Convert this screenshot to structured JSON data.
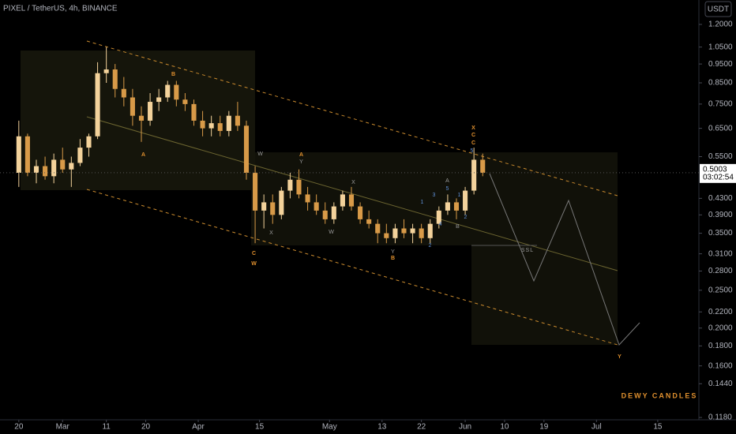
{
  "chart_data": {
    "type": "candlestick",
    "title": "PIXEL / TetherUS, 4h, BINANCE",
    "currency": "USDT",
    "last_price": 0.5003,
    "countdown": "03:02:54",
    "x": [
      0,
      2,
      4,
      6,
      8,
      10,
      12,
      14,
      16,
      18,
      20,
      22,
      24,
      26,
      28,
      30,
      32,
      34,
      36,
      38,
      40,
      42,
      44,
      46,
      48,
      50,
      52,
      54,
      56,
      58,
      60,
      62,
      64,
      66,
      68,
      70,
      72,
      74,
      76,
      78,
      80,
      82,
      84,
      86,
      88,
      90,
      92,
      94,
      96,
      98,
      100,
      102,
      104,
      106
    ],
    "open": [
      0.5,
      0.62,
      0.5,
      0.52,
      0.49,
      0.54,
      0.51,
      0.53,
      0.58,
      0.62,
      0.9,
      0.92,
      0.82,
      0.78,
      0.7,
      0.68,
      0.76,
      0.78,
      0.84,
      0.77,
      0.75,
      0.68,
      0.65,
      0.67,
      0.64,
      0.7,
      0.66,
      0.5,
      0.4,
      0.42,
      0.39,
      0.45,
      0.48,
      0.44,
      0.42,
      0.4,
      0.38,
      0.41,
      0.44,
      0.41,
      0.38,
      0.37,
      0.35,
      0.34,
      0.36,
      0.35,
      0.36,
      0.34,
      0.37,
      0.4,
      0.42,
      0.4,
      0.45,
      0.54
    ],
    "high": [
      0.68,
      0.63,
      0.54,
      0.55,
      0.56,
      0.58,
      0.55,
      0.61,
      0.63,
      0.96,
      1.05,
      0.95,
      0.88,
      0.82,
      0.74,
      0.8,
      0.82,
      0.86,
      0.86,
      0.8,
      0.77,
      0.72,
      0.7,
      0.7,
      0.72,
      0.76,
      0.68,
      0.52,
      0.44,
      0.44,
      0.46,
      0.5,
      0.51,
      0.46,
      0.44,
      0.42,
      0.42,
      0.45,
      0.46,
      0.42,
      0.4,
      0.38,
      0.37,
      0.37,
      0.38,
      0.37,
      0.37,
      0.38,
      0.41,
      0.44,
      0.43,
      0.46,
      0.58,
      0.56
    ],
    "low": [
      0.46,
      0.49,
      0.47,
      0.48,
      0.47,
      0.5,
      0.46,
      0.52,
      0.55,
      0.61,
      0.85,
      0.78,
      0.74,
      0.66,
      0.6,
      0.66,
      0.72,
      0.76,
      0.74,
      0.72,
      0.66,
      0.62,
      0.62,
      0.62,
      0.62,
      0.64,
      0.48,
      0.33,
      0.36,
      0.37,
      0.38,
      0.43,
      0.43,
      0.4,
      0.39,
      0.37,
      0.37,
      0.4,
      0.4,
      0.37,
      0.36,
      0.33,
      0.33,
      0.33,
      0.34,
      0.33,
      0.33,
      0.33,
      0.36,
      0.39,
      0.38,
      0.39,
      0.44,
      0.49
    ],
    "close": [
      0.62,
      0.5,
      0.52,
      0.49,
      0.54,
      0.51,
      0.53,
      0.58,
      0.62,
      0.9,
      0.92,
      0.82,
      0.78,
      0.7,
      0.68,
      0.76,
      0.78,
      0.84,
      0.77,
      0.75,
      0.68,
      0.65,
      0.67,
      0.64,
      0.7,
      0.66,
      0.5,
      0.4,
      0.42,
      0.39,
      0.45,
      0.48,
      0.44,
      0.42,
      0.4,
      0.38,
      0.41,
      0.44,
      0.41,
      0.38,
      0.37,
      0.35,
      0.34,
      0.36,
      0.35,
      0.36,
      0.34,
      0.37,
      0.4,
      0.42,
      0.4,
      0.45,
      0.54,
      0.5
    ],
    "up_color": "#f3d29b",
    "down_color": "#d89a48",
    "log_scale": true,
    "xlim": [
      -4.3,
      155.4
    ],
    "xticks": [
      {
        "value": 0,
        "label": "20"
      },
      {
        "value": 10,
        "label": "Mar"
      },
      {
        "value": 20,
        "label": "11"
      },
      {
        "value": 29,
        "label": "20"
      },
      {
        "value": 41,
        "label": "Apr"
      },
      {
        "value": 55,
        "label": "15"
      },
      {
        "value": 71,
        "label": "May"
      },
      {
        "value": 83,
        "label": "13"
      },
      {
        "value": 92,
        "label": "22"
      },
      {
        "value": 102,
        "label": "Jun"
      },
      {
        "value": 111,
        "label": "10"
      },
      {
        "value": 120,
        "label": "19"
      },
      {
        "value": 132,
        "label": "Jul"
      },
      {
        "value": 146,
        "label": "15"
      }
    ],
    "ylim": [
      0.1164,
      1.386
    ],
    "yticks": [
      {
        "value": 1.2,
        "label": "1.2000"
      },
      {
        "value": 1.05,
        "label": "1.0500"
      },
      {
        "value": 0.95,
        "label": "0.9500"
      },
      {
        "value": 0.85,
        "label": "0.8500"
      },
      {
        "value": 0.75,
        "label": "0.7500"
      },
      {
        "value": 0.65,
        "label": "0.6500"
      },
      {
        "value": 0.55,
        "label": "0.5500"
      },
      {
        "value": 0.43,
        "label": "0.4300"
      },
      {
        "value": 0.39,
        "label": "0.3900"
      },
      {
        "value": 0.35,
        "label": "0.3500"
      },
      {
        "value": 0.31,
        "label": "0.3100"
      },
      {
        "value": 0.28,
        "label": "0.2800"
      },
      {
        "value": 0.25,
        "label": "0.2500"
      },
      {
        "value": 0.22,
        "label": "0.2200"
      },
      {
        "value": 0.2,
        "label": "0.2000"
      },
      {
        "value": 0.18,
        "label": "0.1800"
      },
      {
        "value": 0.16,
        "label": "0.1600"
      },
      {
        "value": 0.144,
        "label": "0.1440"
      },
      {
        "value": 0.118,
        "label": "0.1180"
      }
    ],
    "annotations": [
      "A",
      "B",
      "C",
      "W",
      "W",
      "X",
      "A",
      "Y",
      "X",
      "W",
      "Y",
      "B",
      "2",
      "1",
      "3",
      "4",
      "5",
      "A",
      "1",
      "B",
      "2",
      "5",
      "C",
      "C",
      "X",
      "SSL",
      "Y",
      "DEWY CANDLES"
    ]
  }
}
